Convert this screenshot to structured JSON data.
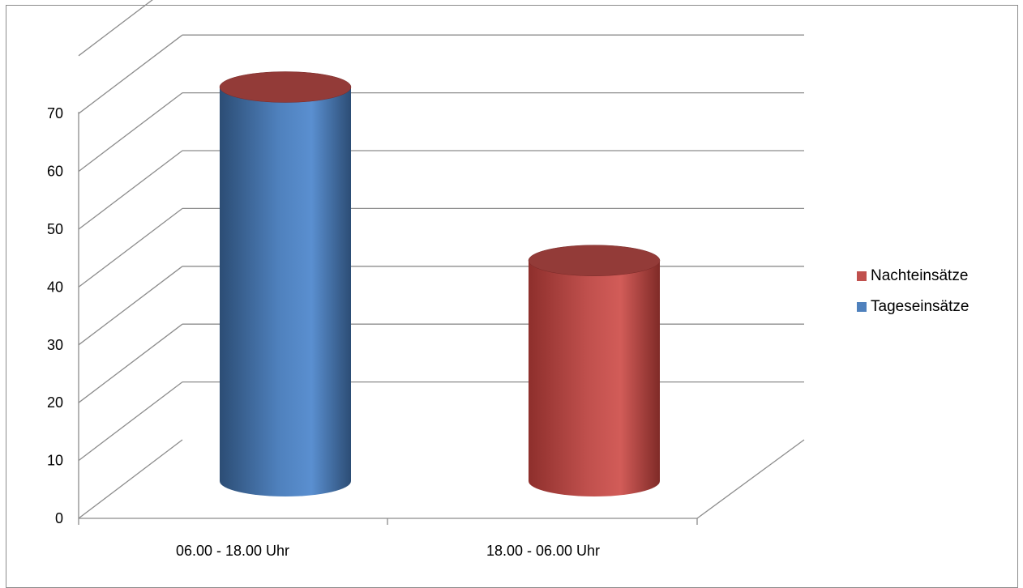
{
  "chart_data": {
    "type": "bar",
    "style": "3d-cylinder",
    "categories": [
      "06.00 - 18.00 Uhr",
      "18.00 - 06.00 Uhr"
    ],
    "series": [
      {
        "name": "Nachteinsätze",
        "color": "#c0504d",
        "values": [
          0,
          38
        ]
      },
      {
        "name": "Tageseinsätze",
        "color": "#4f81bd",
        "values": [
          68,
          0
        ]
      }
    ],
    "yticks": [
      "0",
      "10",
      "20",
      "30",
      "40",
      "50",
      "60",
      "70"
    ],
    "ylim": [
      0,
      70
    ],
    "grid": true,
    "legend_position": "right"
  }
}
